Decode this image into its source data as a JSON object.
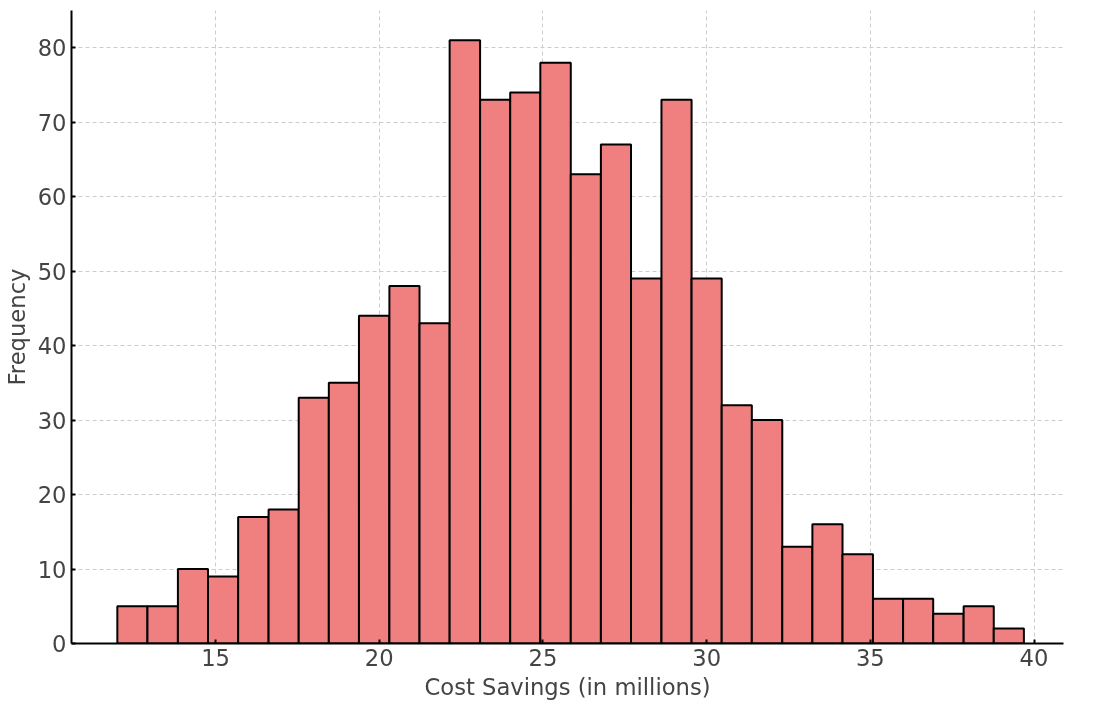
{
  "chart_data": {
    "type": "histogram",
    "xlabel": "Cost Savings (in millions)",
    "ylabel": "Frequency",
    "bins": [
      12.0,
      12.92,
      13.85,
      14.77,
      15.69,
      16.62,
      17.54,
      18.46,
      19.38,
      20.31,
      21.23,
      22.15,
      23.08,
      24.0,
      24.92,
      25.85,
      26.77,
      27.69,
      28.62,
      29.54,
      30.46,
      31.38,
      32.31,
      33.23,
      34.15,
      35.08,
      36.0,
      36.92,
      37.85,
      38.77,
      39.69
    ],
    "values": [
      5,
      5,
      10,
      9,
      17,
      18,
      33,
      35,
      44,
      48,
      43,
      81,
      73,
      74,
      78,
      63,
      67,
      49,
      73,
      49,
      32,
      30,
      13,
      16,
      12,
      6,
      6,
      4,
      5,
      2
    ],
    "color": "#f08080",
    "xlim": [
      10.6,
      40.9
    ],
    "ylim": [
      0,
      85
    ],
    "xticks": [
      15,
      20,
      25,
      30,
      35,
      40
    ],
    "yticks": [
      0,
      10,
      20,
      30,
      40,
      50,
      60,
      70,
      80
    ],
    "grid": true
  }
}
